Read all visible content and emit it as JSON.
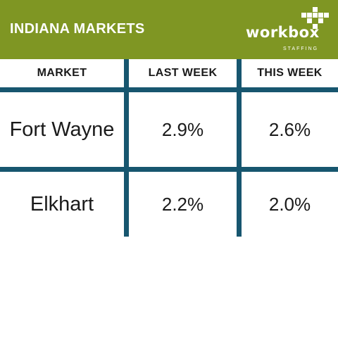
{
  "header": {
    "title": "INDIANA MARKETS",
    "bg_color": "#7f9623",
    "logo": {
      "word": "workbox",
      "sub": "STAFFING"
    }
  },
  "table": {
    "line_color": "#17566f",
    "columns": [
      "MARKET",
      "LAST WEEK",
      "THIS WEEK"
    ],
    "rows": [
      {
        "market": "Fort Wayne",
        "last_week": "2.9%",
        "this_week": "2.6%"
      },
      {
        "market": "Elkhart",
        "last_week": "2.2%",
        "this_week": "2.0%"
      }
    ]
  }
}
